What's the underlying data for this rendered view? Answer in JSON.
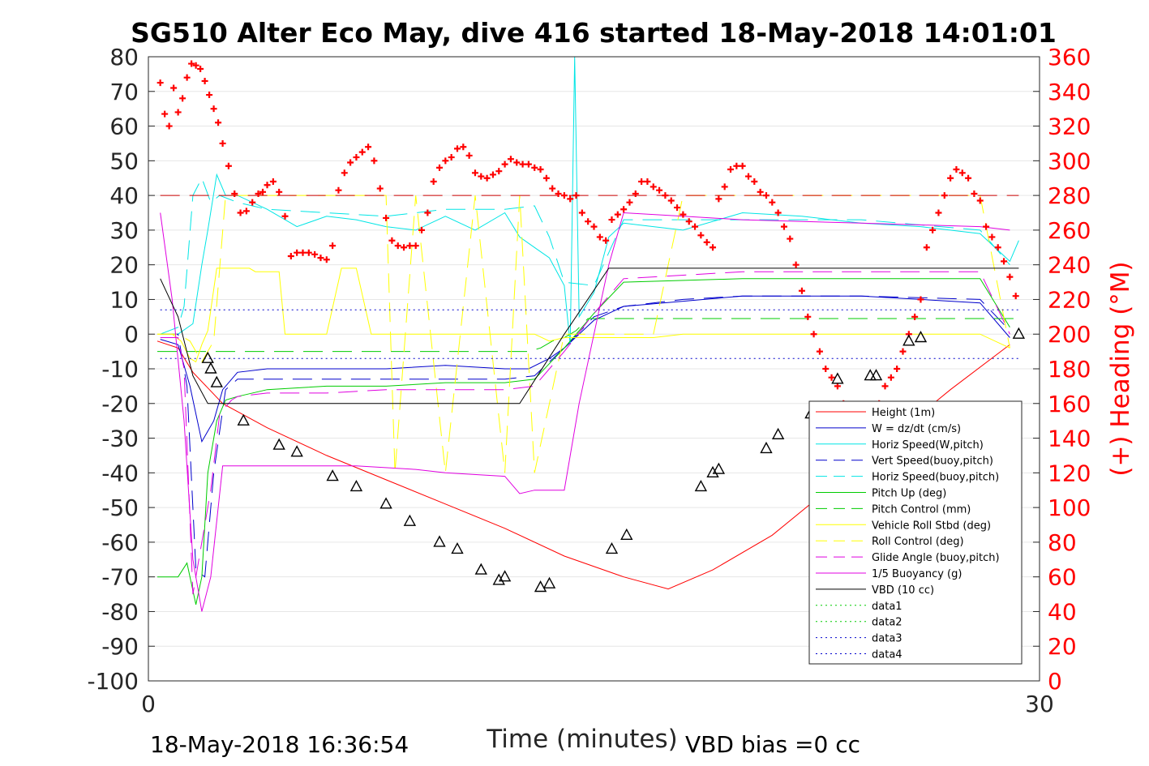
{
  "title": "SG510 Alter Eco May, dive 416 started 18-May-2018 14:01:01",
  "footer": {
    "timestamp": "18-May-2018 16:36:54",
    "vbd_bias": "VBD bias =0 cc"
  },
  "chart_data": {
    "type": "line",
    "xlabel": "Time (minutes)",
    "ylabel": "",
    "y2label": "(+) Heading (°M)",
    "xlim": [
      0,
      30
    ],
    "ylim": [
      -100,
      80
    ],
    "y2lim": [
      0,
      360
    ],
    "x_ticks": [
      "0",
      "30"
    ],
    "y_ticks": [
      "80",
      "70",
      "60",
      "50",
      "40",
      "30",
      "20",
      "10",
      "0",
      "-10",
      "-20",
      "-30",
      "-40",
      "-50",
      "-60",
      "-70",
      "-80",
      "-90",
      "-100"
    ],
    "y2_ticks": [
      "360",
      "340",
      "320",
      "300",
      "280",
      "260",
      "240",
      "220",
      "200",
      "180",
      "160",
      "140",
      "120",
      "100",
      "80",
      "60",
      "40",
      "20",
      "0"
    ],
    "grid": "horizontal",
    "legend_position": "lower-right",
    "series": [
      {
        "name": "Height (1m)",
        "color": "#ff0000",
        "dash": "",
        "width": 1,
        "x": [
          0.3,
          1.0,
          1.5,
          2.5,
          4,
          6,
          8,
          10,
          12,
          14,
          16,
          17.5,
          19,
          21,
          23,
          25,
          27,
          29
        ],
        "y": [
          -2,
          -4,
          -11,
          -20,
          -27,
          -35,
          -42,
          -49,
          -56,
          -64,
          -70,
          -73.5,
          -68,
          -58,
          -44,
          -30,
          -16,
          -3
        ]
      },
      {
        "name": "W = dz/dt (cm/s)",
        "color": "#0000cc",
        "dash": "",
        "width": 1,
        "x": [
          0.4,
          1.0,
          1.4,
          1.8,
          2.2,
          2.5,
          3,
          4,
          6,
          8,
          10,
          12,
          12.8,
          13.5,
          14,
          14.5,
          15,
          16,
          20,
          24,
          26,
          28,
          29
        ],
        "y": [
          -1.5,
          -3,
          -15,
          -31,
          -25,
          -16,
          -11,
          -10,
          -10,
          -10,
          -9,
          -10,
          -10,
          -7,
          -4,
          0,
          4,
          8,
          11,
          11,
          10,
          9,
          -1
        ]
      },
      {
        "name": "Horiz Speed(W,pitch)",
        "color": "#00e5e5",
        "dash": "",
        "width": 1,
        "x": [
          0.4,
          1.0,
          1.5,
          1.8,
          2.0,
          2.3,
          2.6,
          3,
          4,
          5,
          6,
          7,
          8,
          9,
          10,
          11,
          12,
          12.5,
          13,
          13.5,
          14,
          14.2,
          14.35,
          14.5,
          15,
          15.5,
          16,
          17,
          18,
          20,
          22,
          24,
          26,
          28,
          29,
          29.3
        ],
        "y": [
          0,
          0,
          3,
          20,
          30,
          46,
          40,
          40,
          36,
          31,
          34,
          33,
          31,
          30,
          34,
          30,
          35,
          28,
          25,
          22,
          14,
          -3,
          80,
          5,
          12,
          28,
          32,
          31,
          30,
          35,
          34,
          32,
          31,
          29,
          21,
          27
        ]
      },
      {
        "name": "Vert Speed(buoy,pitch)",
        "color": "#0000cc",
        "dash": "24,12",
        "width": 1,
        "x": [
          0.4,
          1.0,
          1.3,
          1.6,
          1.9,
          2.2,
          2.6,
          3,
          4,
          6,
          8,
          10,
          12,
          13,
          14,
          15,
          16,
          18,
          20,
          24,
          28,
          29
        ],
        "y": [
          0,
          0,
          -15,
          -68,
          -70,
          -40,
          -16,
          -13,
          -13,
          -13,
          -13,
          -13,
          -13,
          -12,
          -4,
          5,
          8,
          10,
          11,
          11,
          10,
          1
        ]
      },
      {
        "name": "Horiz Speed(buoy,pitch)",
        "color": "#00e5e5",
        "dash": "24,12",
        "width": 1,
        "x": [
          0.4,
          1.0,
          1.2,
          1.5,
          1.8,
          2.1,
          2.4,
          3,
          4,
          6,
          8,
          10,
          12,
          13,
          13.5,
          14,
          15,
          16,
          18,
          20,
          24,
          28,
          29
        ],
        "y": [
          0,
          2,
          8,
          40,
          45,
          38,
          40,
          38,
          36,
          35,
          34,
          36,
          36,
          37,
          28,
          15,
          14,
          33,
          33,
          33,
          33,
          30,
          20
        ]
      },
      {
        "name": "Pitch Up (deg)",
        "color": "#00cc00",
        "dash": "",
        "width": 1,
        "x": [
          0.3,
          1.0,
          1.3,
          1.6,
          1.8,
          2.0,
          2.3,
          2.6,
          3,
          4,
          6,
          8,
          10,
          12,
          13,
          14,
          15,
          16,
          20,
          24,
          28,
          29
        ],
        "y": [
          -70,
          -70,
          -66,
          -78,
          -70,
          -40,
          -25,
          -19,
          -18,
          -16,
          -15,
          -15,
          -14,
          -14,
          -13,
          -4,
          6,
          15,
          16,
          16,
          16,
          2
        ]
      },
      {
        "name": "Pitch Control (mm)",
        "color": "#00cc00",
        "dash": "24,12",
        "width": 1,
        "x": [
          0.3,
          1.5,
          2.0,
          2.5,
          3,
          12,
          12.8,
          13.2,
          13.6,
          14.0,
          14.4,
          14.8,
          29.3
        ],
        "y": [
          -5,
          -5,
          -5,
          -5,
          -5,
          -5,
          -5,
          -4,
          -2,
          -1,
          1,
          4.5,
          4.5
        ]
      },
      {
        "name": "Vehicle Roll Stbd (deg)",
        "color": "#ffff00",
        "dash": "",
        "width": 1,
        "x": [
          0.3,
          0.8,
          1.1,
          1.4,
          1.6,
          1.8,
          2.0,
          2.3,
          2.6,
          3.0,
          3.2,
          3.4,
          3.6,
          4.4,
          4.6,
          5.0,
          5.5,
          6.0,
          6.5,
          7.0,
          7.5,
          8.0,
          8.5,
          9.0,
          10,
          11,
          12,
          12.5,
          13,
          13.5,
          14,
          15,
          16,
          17,
          18,
          19,
          20,
          22,
          24,
          26,
          28,
          29
        ],
        "y": [
          0,
          0,
          -2,
          -7,
          -8,
          -3,
          1,
          19,
          19,
          19,
          19,
          19,
          18,
          18,
          0,
          0,
          0,
          0,
          19,
          19,
          0,
          0,
          0,
          0,
          0,
          0,
          0,
          0,
          0,
          -2,
          -1,
          -1,
          -1,
          -1,
          0,
          0,
          0,
          0,
          0,
          0,
          0,
          -4
        ]
      },
      {
        "name": "Roll Control (deg)",
        "color": "#ffff00",
        "dash": "24,12",
        "width": 1,
        "x": [
          0.3,
          1.0,
          1.4,
          1.8,
          2.2,
          2.6,
          3,
          4,
          5,
          6,
          7,
          8,
          8.3,
          9,
          10,
          11,
          12,
          12.5,
          13,
          14,
          15,
          16,
          17,
          18,
          20,
          22,
          24,
          26,
          28,
          29
        ],
        "y": [
          0,
          0,
          -2,
          -8,
          -2,
          40,
          40,
          40,
          40,
          40,
          40,
          40,
          -40,
          40,
          -40,
          40,
          -40,
          40,
          -40,
          0,
          0,
          0,
          0,
          40,
          40,
          40,
          40,
          40,
          40,
          -4
        ]
      },
      {
        "name": "Glide Angle (buoy,pitch)",
        "color": "#e000e0",
        "dash": "24,12",
        "width": 1,
        "x": [
          0.4,
          1.0,
          1.2,
          1.5,
          1.8,
          2.1,
          2.4,
          2.8,
          3,
          4,
          6,
          8,
          10,
          12,
          13,
          14,
          15,
          16,
          18,
          20,
          24,
          28,
          29
        ],
        "y": [
          -1,
          -1,
          -10,
          -75,
          -60,
          -45,
          -23,
          -19,
          -18,
          -17,
          -17,
          -16,
          -16,
          -16,
          -15,
          -5,
          6,
          16,
          17,
          18,
          18,
          18,
          0
        ]
      },
      {
        "name": "1/5 Buoyancy (g)",
        "color": "#e000e0",
        "dash": "",
        "width": 1,
        "x": [
          0.4,
          0.8,
          1.2,
          1.5,
          1.8,
          2.1,
          2.5,
          3,
          5,
          7,
          9,
          10,
          12,
          12.5,
          13,
          13.5,
          14,
          14.5,
          15,
          15.5,
          16,
          18,
          20,
          24,
          28,
          29
        ],
        "y": [
          35,
          10,
          -25,
          -65,
          -80,
          -70,
          -38,
          -38,
          -38,
          -38,
          -39,
          -40,
          -41,
          -46,
          -45,
          -45,
          -45,
          -20,
          0,
          20,
          35,
          34,
          33,
          32,
          31,
          30
        ]
      },
      {
        "name": "VBD (10 cc)",
        "color": "#000000",
        "dash": "",
        "width": 1,
        "x": [
          0.4,
          1.0,
          1.5,
          2.0,
          2.5,
          12.0,
          12.5,
          14,
          15.5,
          16.5,
          29.3
        ],
        "y": [
          16,
          5,
          -12,
          -20,
          -20,
          -20,
          -20,
          0,
          19,
          19,
          19
        ]
      },
      {
        "name": "data1",
        "color": "#00cc00",
        "dash": "2,4",
        "width": 1,
        "x": [],
        "y": []
      },
      {
        "name": "data2",
        "color": "#00cc00",
        "dash": "2,4",
        "width": 1,
        "x": [],
        "y": []
      },
      {
        "name": "data3",
        "color": "#0000cc",
        "dash": "2,4",
        "width": 1,
        "x": [
          0.4,
          29.3
        ],
        "y": [
          7,
          7
        ]
      },
      {
        "name": "data4",
        "color": "#0000cc",
        "dash": "2,4",
        "width": 1,
        "x": [
          0.4,
          29.3
        ],
        "y": [
          -7,
          -7
        ]
      }
    ],
    "heading_reference": {
      "color": "#cc0000",
      "y2": 280
    },
    "heading_points": {
      "color": "#ff0000",
      "x": [
        0.4,
        0.55,
        0.7,
        0.85,
        1.0,
        1.15,
        1.3,
        1.45,
        1.6,
        1.75,
        1.9,
        2.05,
        2.2,
        2.35,
        2.5,
        2.7,
        2.9,
        3.1,
        3.3,
        3.5,
        3.7,
        3.85,
        4.0,
        4.2,
        4.4,
        4.6,
        4.8,
        5.0,
        5.2,
        5.4,
        5.6,
        5.8,
        6.0,
        6.2,
        6.4,
        6.6,
        6.8,
        7.0,
        7.2,
        7.4,
        7.6,
        7.8,
        8.0,
        8.2,
        8.4,
        8.6,
        8.8,
        9.0,
        9.2,
        9.4,
        9.6,
        9.8,
        10.0,
        10.2,
        10.4,
        10.6,
        10.8,
        11.0,
        11.2,
        11.4,
        11.6,
        11.8,
        12.0,
        12.2,
        12.4,
        12.6,
        12.8,
        13.0,
        13.2,
        13.4,
        13.6,
        13.8,
        14.0,
        14.2,
        14.4,
        14.6,
        14.8,
        15.0,
        15.2,
        15.4,
        15.6,
        15.8,
        16.0,
        16.2,
        16.4,
        16.6,
        16.8,
        17.0,
        17.2,
        17.4,
        17.6,
        17.8,
        18.0,
        18.2,
        18.4,
        18.6,
        18.8,
        19.0,
        19.2,
        19.4,
        19.6,
        19.8,
        20.0,
        20.2,
        20.4,
        20.6,
        20.8,
        21.0,
        21.2,
        21.4,
        21.6,
        21.8,
        22.0,
        22.2,
        22.4,
        22.6,
        22.8,
        23.0,
        23.2,
        23.4,
        23.6,
        23.8,
        24.0,
        24.2,
        24.4,
        24.6,
        24.8,
        25.0,
        25.2,
        25.4,
        25.6,
        25.8,
        26.0,
        26.2,
        26.4,
        26.6,
        26.8,
        27.0,
        27.2,
        27.4,
        27.6,
        27.8,
        28.0,
        28.2,
        28.4,
        28.6,
        28.8,
        29.0,
        29.2
      ],
      "y2": [
        345,
        327,
        320,
        342,
        328,
        336,
        348,
        356,
        355,
        353,
        346,
        338,
        330,
        322,
        310,
        297,
        281,
        270,
        271,
        276,
        281,
        282,
        286,
        288,
        282,
        268,
        245,
        247,
        247,
        247,
        246,
        244,
        243,
        251,
        283,
        293,
        299,
        302,
        305,
        308,
        300,
        284,
        267,
        254,
        251,
        250,
        251,
        251,
        260,
        270,
        288,
        296,
        300,
        302,
        307,
        308,
        303,
        293,
        291,
        290,
        292,
        294,
        298,
        301,
        299,
        298,
        298,
        296,
        295,
        290,
        284,
        281,
        280,
        278,
        280,
        270,
        265,
        262,
        256,
        254,
        266,
        269,
        272,
        276,
        281,
        288,
        288,
        285,
        283,
        280,
        277,
        273,
        269,
        265,
        262,
        257,
        253,
        250,
        278,
        285,
        295,
        297,
        297,
        291,
        288,
        282,
        280,
        276,
        270,
        262,
        255,
        240,
        225,
        210,
        200,
        190,
        180,
        175,
        170,
        160,
        150,
        146,
        120,
        135,
        150,
        160,
        170,
        175,
        180,
        190,
        200,
        210,
        220,
        250,
        260,
        270,
        280,
        290,
        295,
        293,
        290,
        281,
        277,
        262,
        256,
        250,
        242,
        233,
        222
      ]
    },
    "markers": {
      "shape": "triangle",
      "x": [
        2.0,
        2.1,
        2.3,
        3.2,
        4.4,
        5.0,
        6.2,
        7.0,
        8.0,
        8.8,
        9.8,
        10.4,
        11.2,
        11.8,
        12.0,
        13.2,
        13.5,
        15.6,
        16.1,
        18.6,
        19.0,
        19.2,
        20.8,
        21.2,
        22.3,
        23.2,
        24.3,
        24.5,
        25.6,
        26.0,
        29.3
      ],
      "y": [
        -7,
        -10,
        -14,
        -25,
        -32,
        -34,
        -41,
        -44,
        -49,
        -54,
        -60,
        -62,
        -68,
        -71,
        -70,
        -73,
        -72,
        -62,
        -58,
        -44,
        -40,
        -39,
        -33,
        -29,
        -23,
        -13,
        -12,
        -12,
        -2,
        -1,
        0
      ]
    }
  }
}
